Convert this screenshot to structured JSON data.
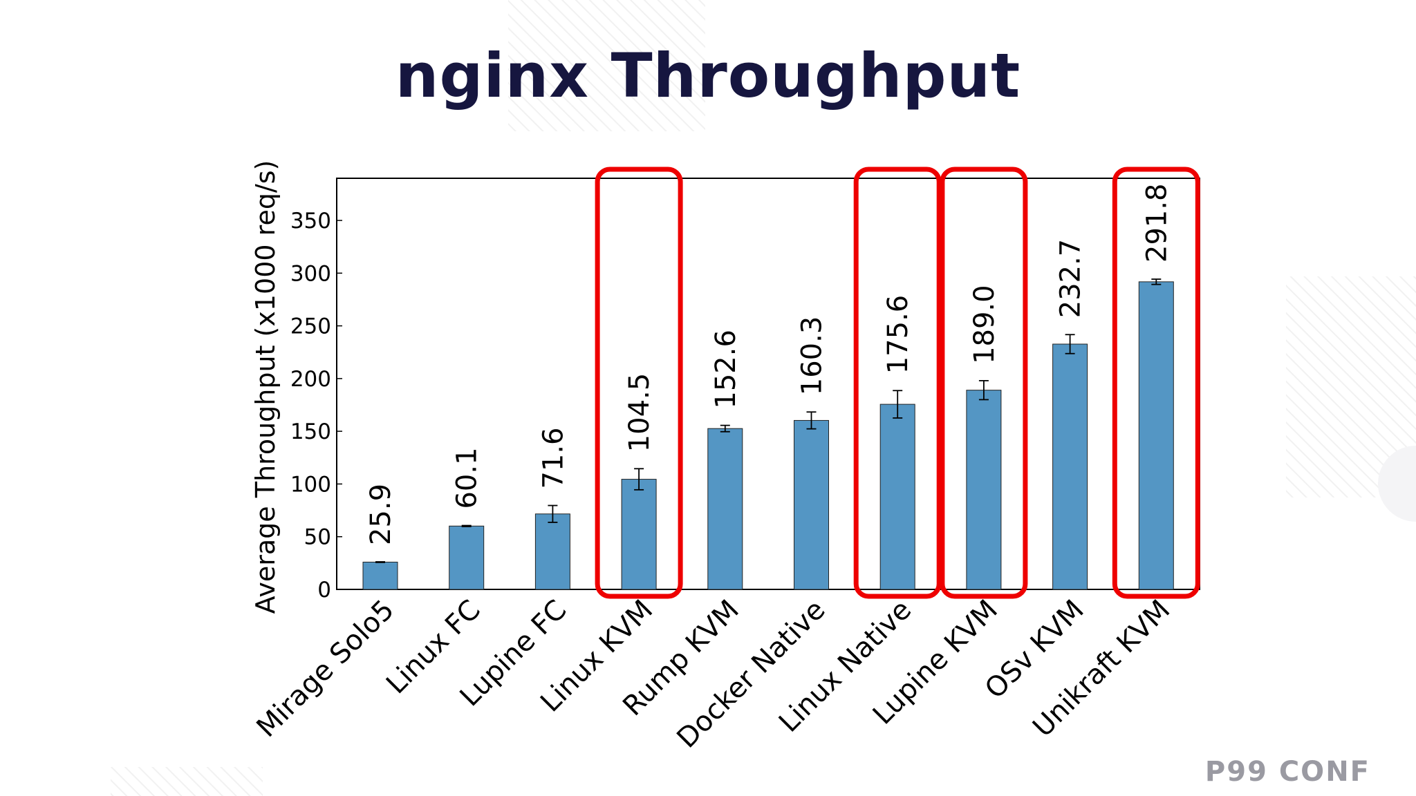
{
  "slide": {
    "title": "nginx Throughput",
    "brand": "P99 CONF",
    "highlight_color": "#ee0000"
  },
  "chart_data": {
    "type": "bar",
    "title": "",
    "xlabel": "",
    "ylabel": "Average Throughput (x1000 req/s)",
    "categories": [
      "Mirage Solo5",
      "Linux FC",
      "Lupine FC",
      "Linux KVM",
      "Rump KVM",
      "Docker Native",
      "Linux Native",
      "Lupine KVM",
      "OSv KVM",
      "Unikraft KVM"
    ],
    "values": [
      25.9,
      60.1,
      71.6,
      104.5,
      152.6,
      160.3,
      175.6,
      189.0,
      232.7,
      291.8
    ],
    "value_labels": [
      "25.9",
      "60.1",
      "71.6",
      "104.5",
      "152.6",
      "160.3",
      "175.6",
      "189.0",
      "232.7",
      "291.8"
    ],
    "errors": [
      0.3,
      0.5,
      8,
      10,
      3,
      8,
      13,
      9,
      9,
      2.5
    ],
    "ylim": [
      0,
      390
    ],
    "yticks": [
      0,
      50,
      100,
      150,
      200,
      250,
      300,
      350
    ],
    "bar_color": "#5496c4",
    "highlighted_categories": [
      "Linux KVM",
      "Linux Native",
      "Lupine KVM",
      "Unikraft KVM"
    ],
    "grid": false,
    "legend": "none"
  }
}
